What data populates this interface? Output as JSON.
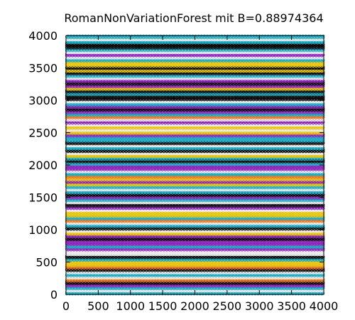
{
  "chart_data": {
    "type": "scatter",
    "title": "RomanNonVariationForest mit B=0.88974364",
    "xlabel": "",
    "ylabel": "",
    "xlim": [
      0,
      4000
    ],
    "ylim": [
      0,
      4000
    ],
    "x_ticks": [
      "0",
      "500",
      "1000",
      "1500",
      "2000",
      "2500",
      "3000",
      "3500",
      "4000"
    ],
    "y_ticks": [
      "0",
      "500",
      "1000",
      "1500",
      "2000",
      "2500",
      "3000",
      "3500",
      "4000"
    ],
    "grid": false,
    "legend": "none",
    "marker": "open-circle",
    "band_spacing": 40,
    "point_spacing": 45,
    "colors": [
      "#e6c40a",
      "#17a8c0",
      "#000000",
      "#8b1fb8",
      "#e8731c",
      "#ffffff"
    ],
    "band_color_sequence": [
      1,
      5,
      1,
      3,
      2,
      4,
      5,
      1,
      5,
      2,
      4,
      0,
      0,
      1,
      2,
      5,
      5,
      3,
      1,
      3,
      3,
      2,
      3,
      0,
      5,
      2,
      1,
      5,
      4,
      1,
      0,
      0,
      5,
      3,
      2,
      5,
      1,
      3,
      2,
      1,
      5,
      1,
      0,
      3,
      0,
      4,
      1,
      5,
      3,
      3,
      1,
      2,
      1,
      0,
      5,
      2,
      1,
      5,
      2,
      1,
      1,
      3,
      0,
      5,
      0,
      5,
      3,
      5,
      4,
      1,
      3,
      2,
      3,
      1,
      5,
      2,
      2,
      1,
      2,
      0,
      3,
      2,
      3,
      5,
      1,
      2,
      0,
      2,
      0,
      0,
      1,
      5,
      3,
      5,
      1,
      2,
      2,
      1,
      5,
      1,
      3
    ]
  }
}
